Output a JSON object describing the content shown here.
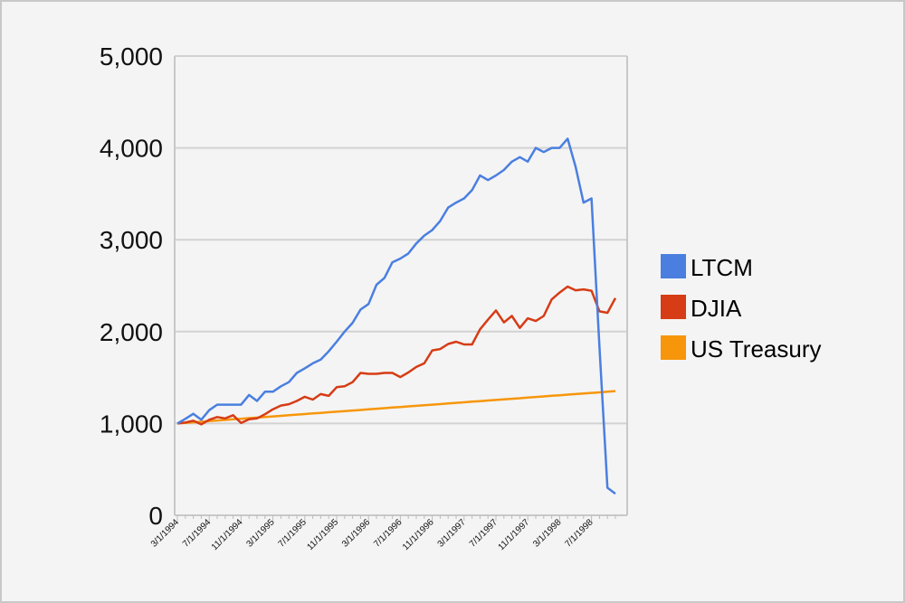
{
  "chart_data": {
    "type": "line",
    "title": "",
    "xlabel": "",
    "ylabel": "",
    "ylim": [
      0,
      5000
    ],
    "y_ticks": [
      "0",
      "1,000",
      "2,000",
      "3,000",
      "4,000",
      "5,000"
    ],
    "x_tick_labels": [
      "3/1/1994",
      "7/1/1994",
      "11/1/1994",
      "3/1/1995",
      "7/1/1995",
      "11/1/1995",
      "3/1/1996",
      "7/1/1996",
      "11/1/1996",
      "3/1/1997",
      "7/1/1997",
      "11/1/1997",
      "3/1/1998",
      "7/1/1998"
    ],
    "x_interval": "monthly",
    "grid": true,
    "legend_position": "right",
    "series": [
      {
        "name": "LTCM",
        "color": "#4a7fe0",
        "values": [
          1000,
          1050,
          1105,
          1040,
          1145,
          1205,
          1205,
          1205,
          1205,
          1310,
          1245,
          1345,
          1345,
          1405,
          1450,
          1550,
          1600,
          1655,
          1695,
          1785,
          1890,
          2000,
          2095,
          2240,
          2300,
          2510,
          2585,
          2755,
          2795,
          2850,
          2960,
          3045,
          3105,
          3205,
          3350,
          3405,
          3450,
          3540,
          3700,
          3650,
          3700,
          3760,
          3850,
          3900,
          3850,
          4000,
          3955,
          4000,
          4000,
          4100,
          3795,
          3405,
          3450,
          1830,
          300,
          235
        ]
      },
      {
        "name": "DJIA",
        "color": "#d63c15",
        "values": [
          1000,
          1010,
          1030,
          990,
          1040,
          1070,
          1055,
          1090,
          1005,
          1045,
          1055,
          1100,
          1155,
          1195,
          1210,
          1245,
          1290,
          1260,
          1320,
          1300,
          1395,
          1405,
          1450,
          1550,
          1540,
          1540,
          1550,
          1550,
          1505,
          1555,
          1615,
          1655,
          1795,
          1810,
          1865,
          1890,
          1860,
          1860,
          2025,
          2130,
          2230,
          2100,
          2170,
          2040,
          2145,
          2115,
          2170,
          2350,
          2425,
          2490,
          2450,
          2460,
          2445,
          2220,
          2205,
          2365
        ]
      },
      {
        "name": "US Treasury",
        "color": "#f7960a",
        "values": [
          1000,
          1006,
          1013,
          1019,
          1026,
          1032,
          1038,
          1045,
          1051,
          1058,
          1064,
          1070,
          1077,
          1083,
          1090,
          1096,
          1102,
          1109,
          1115,
          1122,
          1128,
          1134,
          1141,
          1147,
          1154,
          1160,
          1166,
          1173,
          1179,
          1186,
          1192,
          1198,
          1205,
          1211,
          1218,
          1224,
          1230,
          1237,
          1243,
          1250,
          1256,
          1262,
          1269,
          1275,
          1282,
          1288,
          1294,
          1301,
          1307,
          1314,
          1320,
          1326,
          1333,
          1339,
          1346,
          1352
        ]
      }
    ]
  }
}
